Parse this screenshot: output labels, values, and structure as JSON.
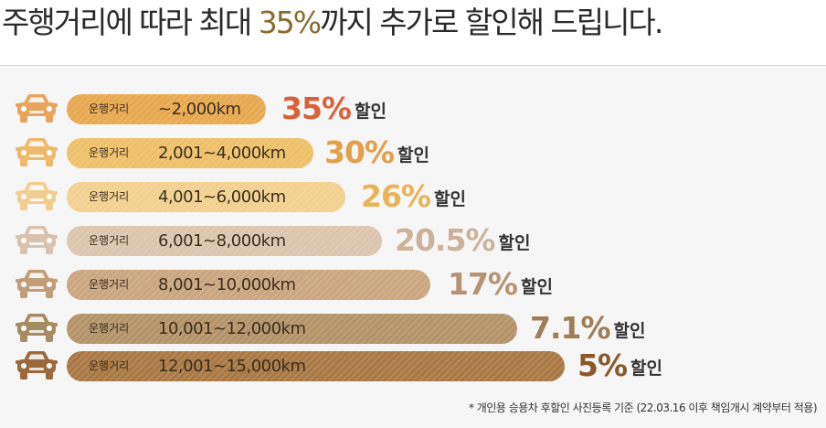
{
  "headline": {
    "before": "주행거리에 따라 최대 ",
    "highlight": "35%",
    "after": "까지 추가로 할인해 드립니다."
  },
  "tiers": [
    {
      "label": "운행거리",
      "range": "~2,000km",
      "discount": "35%",
      "suffix": "할인",
      "bar_color": "#e7a84f",
      "num_color": "#d9623a",
      "car_color": "#e8a35c",
      "bar_fraction": 0.35
    },
    {
      "label": "운행거리",
      "range": "2,001~4,000km",
      "discount": "30%",
      "suffix": "할인",
      "bar_color": "#eec069",
      "num_color": "#e2a04a",
      "car_color": "#eeb96b",
      "bar_fraction": 0.3
    },
    {
      "label": "운행거리",
      "range": "4,001~6,000km",
      "discount": "26%",
      "suffix": "할인",
      "bar_color": "#f2d08f",
      "num_color": "#eab35a",
      "car_color": "#f1cd8e",
      "bar_fraction": 0.26
    },
    {
      "label": "운행거리",
      "range": "6,001~8,000km",
      "discount": "20.5%",
      "suffix": "할인",
      "bar_color": "#dcc5ae",
      "num_color": "#cbb39b",
      "car_color": "#d8c2ad",
      "bar_fraction": 0.205
    },
    {
      "label": "운행거리",
      "range": "8,001~10,000km",
      "discount": "17%",
      "suffix": "할인",
      "bar_color": "#caa57f",
      "num_color": "#b89372",
      "car_color": "#c29d7a",
      "bar_fraction": 0.17
    },
    {
      "label": "운행거리",
      "range": "10,001~12,000km",
      "discount": "7.1%",
      "suffix": "할인",
      "bar_color": "#b49267",
      "num_color": "#9e7e57",
      "car_color": "#a68c63",
      "bar_fraction": 0.071
    },
    {
      "label": "운행거리",
      "range": "12,001~15,000km",
      "discount": "5%",
      "suffix": "할인",
      "bar_color": "#a87743",
      "num_color": "#8a5a2a",
      "car_color": "#9a6a3d",
      "bar_fraction": 0.05
    }
  ],
  "footnote": "* 개인용 승용차 후할인 사진등록 기준 (22.03.16 이후 책임개시 계약부터 적용)"
}
